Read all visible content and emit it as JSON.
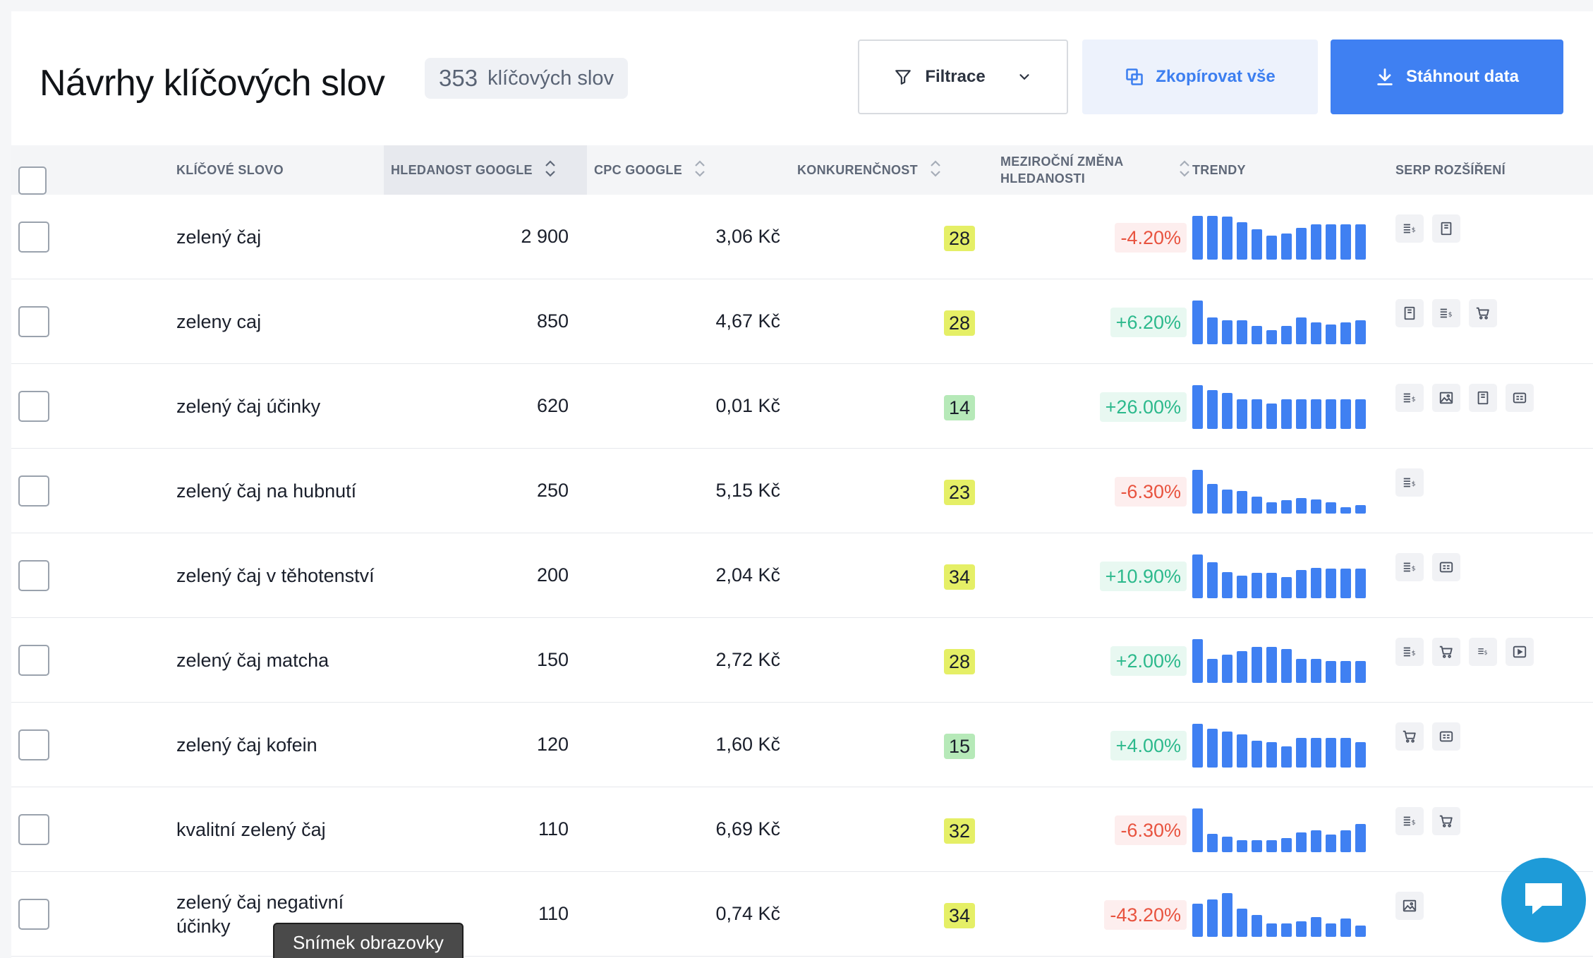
{
  "header": {
    "title": "Návrhy klíčových slov",
    "count_number": "353",
    "count_label": "klíčových slov",
    "filter_label": "Filtrace",
    "copy_label": "Zkopírovat vše",
    "download_label": "Stáhnout data"
  },
  "columns": {
    "keyword": "KLÍČOVÉ SLOVO",
    "volume": "HLEDANOST GOOGLE",
    "cpc": "CPC GOOGLE",
    "competition": "KONKURENČNOST",
    "yoy_line1": "MEZIROČNÍ ZMĚNA",
    "yoy_line2": "HLEDANOSTI",
    "trends": "TRENDY",
    "serp": "SERP ROZŠÍŘENÍ"
  },
  "colors": {
    "accent": "#3f80f2",
    "comp_yellow": "#e5ef66",
    "comp_green": "#b6e9b8",
    "negative": "#e8533f",
    "positive": "#2cb98c"
  },
  "rows": [
    {
      "keyword": "zelený čaj",
      "volume": "2 900",
      "cpc": "3,06 Kč",
      "competition": "28",
      "comp_level": "yellow",
      "change": "-4.20%",
      "change_dir": "neg",
      "trend": [
        1.0,
        1.0,
        0.98,
        0.85,
        0.7,
        0.55,
        0.6,
        0.72,
        0.8,
        0.8,
        0.8,
        0.8
      ],
      "serp": [
        "ads-icon",
        "knowledge-panel-icon"
      ]
    },
    {
      "keyword": "zeleny caj",
      "volume": "850",
      "cpc": "4,67 Kč",
      "competition": "28",
      "comp_level": "yellow",
      "change": "+6.20%",
      "change_dir": "pos",
      "trend": [
        1.0,
        0.62,
        0.55,
        0.55,
        0.42,
        0.32,
        0.42,
        0.62,
        0.5,
        0.45,
        0.5,
        0.55
      ],
      "serp": [
        "knowledge-panel-icon",
        "ads-icon",
        "shopping-cart-icon"
      ]
    },
    {
      "keyword": "zelený čaj účinky",
      "volume": "620",
      "cpc": "0,01 Kč",
      "competition": "14",
      "comp_level": "green",
      "change": "+26.00%",
      "change_dir": "pos",
      "trend": [
        1.0,
        0.88,
        0.82,
        0.68,
        0.68,
        0.58,
        0.68,
        0.68,
        0.68,
        0.68,
        0.68,
        0.68
      ],
      "serp": [
        "ads-icon",
        "image-icon",
        "knowledge-panel-icon",
        "video-icon"
      ]
    },
    {
      "keyword": "zelený čaj na hubnutí",
      "volume": "250",
      "cpc": "5,15 Kč",
      "competition": "23",
      "comp_level": "yellow",
      "change": "-6.30%",
      "change_dir": "neg",
      "trend": [
        1.0,
        0.68,
        0.55,
        0.52,
        0.38,
        0.25,
        0.3,
        0.35,
        0.33,
        0.25,
        0.15,
        0.2
      ],
      "serp": [
        "ads-icon"
      ]
    },
    {
      "keyword": "zelený čaj v těhotenství",
      "volume": "200",
      "cpc": "2,04 Kč",
      "competition": "34",
      "comp_level": "yellow",
      "change": "+10.90%",
      "change_dir": "pos",
      "trend": [
        1.0,
        0.82,
        0.6,
        0.52,
        0.58,
        0.58,
        0.48,
        0.65,
        0.7,
        0.68,
        0.68,
        0.68
      ],
      "serp": [
        "ads-icon",
        "video-icon"
      ]
    },
    {
      "keyword": "zelený čaj matcha",
      "volume": "150",
      "cpc": "2,72 Kč",
      "competition": "28",
      "comp_level": "yellow",
      "change": "+2.00%",
      "change_dir": "pos",
      "trend": [
        1.0,
        0.55,
        0.65,
        0.72,
        0.82,
        0.82,
        0.78,
        0.55,
        0.55,
        0.5,
        0.5,
        0.5
      ],
      "serp": [
        "ads-icon",
        "shopping-cart-icon",
        "ads-small-icon",
        "play-video-icon"
      ]
    },
    {
      "keyword": "zelený čaj kofein",
      "volume": "120",
      "cpc": "1,60 Kč",
      "competition": "15",
      "comp_level": "green",
      "change": "+4.00%",
      "change_dir": "pos",
      "trend": [
        1.0,
        0.88,
        0.82,
        0.75,
        0.62,
        0.58,
        0.48,
        0.68,
        0.68,
        0.68,
        0.68,
        0.58
      ],
      "serp": [
        "shopping-cart-icon",
        "video-icon"
      ]
    },
    {
      "keyword": "kvalitní zelený čaj",
      "volume": "110",
      "cpc": "6,69 Kč",
      "competition": "32",
      "comp_level": "yellow",
      "change": "-6.30%",
      "change_dir": "neg",
      "trend": [
        1.0,
        0.42,
        0.35,
        0.28,
        0.28,
        0.28,
        0.32,
        0.45,
        0.5,
        0.4,
        0.5,
        0.65
      ],
      "serp": [
        "ads-icon",
        "shopping-cart-icon"
      ]
    },
    {
      "keyword": "zelený čaj negativní účinky",
      "volume": "110",
      "cpc": "0,74 Kč",
      "competition": "34",
      "comp_level": "yellow",
      "change": "-43.20%",
      "change_dir": "neg",
      "trend": [
        0.75,
        0.85,
        1.0,
        0.65,
        0.5,
        0.3,
        0.3,
        0.35,
        0.45,
        0.3,
        0.42,
        0.25
      ],
      "serp": [
        "image-icon"
      ]
    }
  ],
  "tooltip": "Snímek obrazovky"
}
